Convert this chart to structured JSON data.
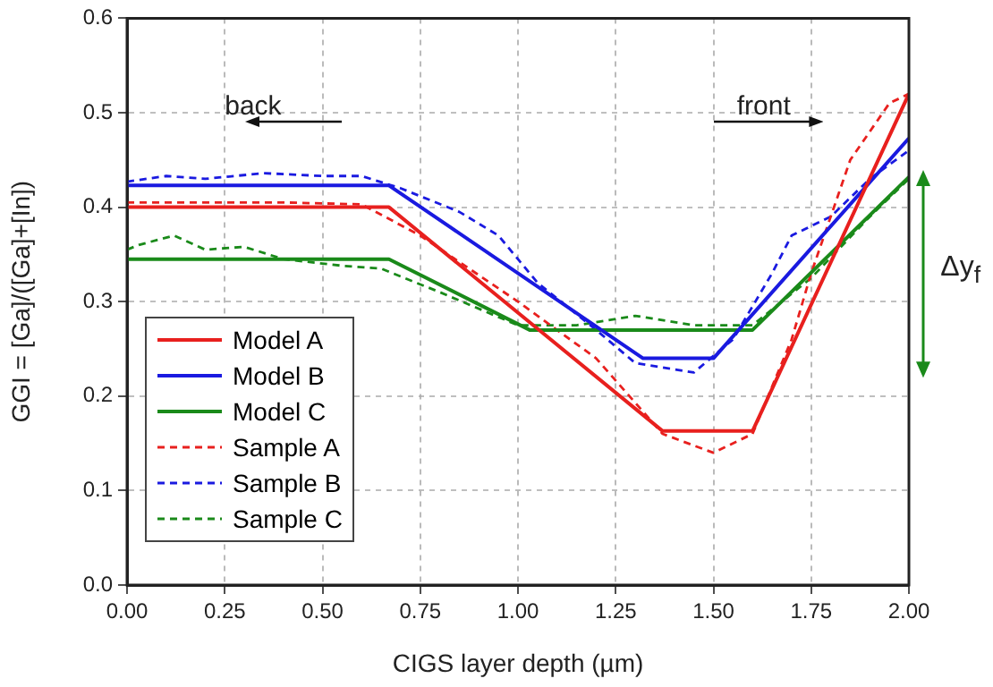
{
  "chart_data": {
    "type": "line",
    "xlabel": "CIGS layer depth (µm)",
    "ylabel": "GGI = [Ga]/([Ga]+[In])",
    "xlim": [
      0,
      2
    ],
    "xticks": [
      {
        "value": 0,
        "label": "0.00"
      },
      {
        "value": 0.25,
        "label": "0.25"
      },
      {
        "value": 0.5,
        "label": "0.50"
      },
      {
        "value": 0.75,
        "label": "0.75"
      },
      {
        "value": 1,
        "label": "1.00"
      },
      {
        "value": 1.25,
        "label": "1.25"
      },
      {
        "value": 1.5,
        "label": "1.50"
      },
      {
        "value": 1.75,
        "label": "1.75"
      },
      {
        "value": 2,
        "label": "2.00"
      }
    ],
    "ylim": [
      0,
      0.6
    ],
    "yticks": [
      {
        "value": 0,
        "label": "0.0"
      },
      0.1,
      0.2,
      0.3,
      0.4,
      0.5,
      0.6
    ],
    "grid": true,
    "legend": "bottom left",
    "marker": "none",
    "annotations": [
      "back",
      "front",
      "Δy$_{f}$"
    ],
    "series": [
      {
        "name": "Model A",
        "color": "#e8201e",
        "line_style": "solid",
        "x": [
          0,
          0.67,
          1.37,
          1.6,
          2.0
        ],
        "values": [
          0.4,
          0.4,
          0.163,
          0.163,
          0.52
        ]
      },
      {
        "name": "Model B",
        "color": "#1a1ae0",
        "line_style": "solid",
        "x": [
          0,
          0.67,
          1.32,
          1.5,
          2.0
        ],
        "values": [
          0.423,
          0.423,
          0.24,
          0.24,
          0.473
        ]
      },
      {
        "name": "Model C",
        "color": "#1a8a1a",
        "line_style": "solid",
        "x": [
          0,
          0.67,
          1.03,
          1.6,
          2.0
        ],
        "values": [
          0.345,
          0.345,
          0.27,
          0.27,
          0.432
        ]
      },
      {
        "name": "Sample A",
        "color": "#e8201e",
        "line_style": "dashed",
        "x": [
          0,
          0.4,
          0.6,
          0.75,
          1.0,
          1.2,
          1.37,
          1.5,
          1.6,
          1.7,
          1.75,
          1.85,
          1.95,
          2.0
        ],
        "values": [
          0.405,
          0.405,
          0.403,
          0.37,
          0.3,
          0.24,
          0.16,
          0.14,
          0.16,
          0.26,
          0.33,
          0.45,
          0.51,
          0.52
        ]
      },
      {
        "name": "Sample B",
        "color": "#1a1ae0",
        "line_style": "dashed",
        "x": [
          0,
          0.1,
          0.2,
          0.35,
          0.5,
          0.6,
          0.7,
          0.85,
          0.95,
          1.05,
          1.2,
          1.3,
          1.45,
          1.55,
          1.65,
          1.7,
          1.8,
          1.9,
          2.0
        ],
        "values": [
          0.427,
          0.433,
          0.43,
          0.436,
          0.433,
          0.433,
          0.42,
          0.395,
          0.37,
          0.32,
          0.27,
          0.235,
          0.225,
          0.26,
          0.33,
          0.37,
          0.39,
          0.43,
          0.46
        ]
      },
      {
        "name": "Sample C",
        "color": "#1a8a1a",
        "line_style": "dashed",
        "x": [
          0,
          0.03,
          0.12,
          0.2,
          0.3,
          0.4,
          0.55,
          0.65,
          0.8,
          1.0,
          1.15,
          1.3,
          1.45,
          1.6,
          1.75,
          1.9,
          2.0
        ],
        "values": [
          0.355,
          0.36,
          0.37,
          0.355,
          0.358,
          0.345,
          0.338,
          0.335,
          0.31,
          0.275,
          0.275,
          0.285,
          0.275,
          0.275,
          0.325,
          0.39,
          0.43
        ]
      }
    ]
  }
}
